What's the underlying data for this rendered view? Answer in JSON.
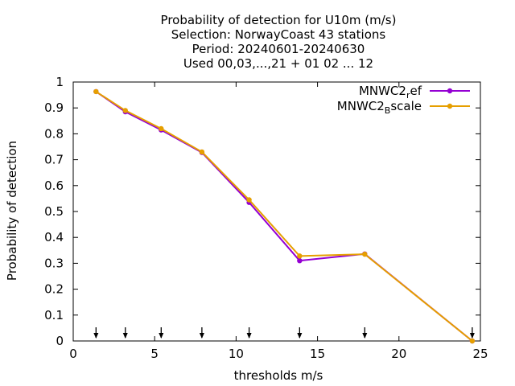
{
  "chart_data": {
    "type": "line",
    "title_lines": [
      "Probability of detection  for U10m (m/s)",
      "Selection: NorwayCoast     43 stations",
      "Period: 20240601-20240630",
      "Used 00,03,...,21 + 01 02 ... 12"
    ],
    "xlabel": "thresholds m/s",
    "ylabel": "Probability of detection",
    "xlim": [
      0,
      25
    ],
    "ylim": [
      0,
      1
    ],
    "xticks": [
      0,
      5,
      10,
      15,
      20,
      25
    ],
    "yticks": [
      0,
      0.1,
      0.2,
      0.3,
      0.4,
      0.5,
      0.6,
      0.7,
      0.8,
      0.9,
      1
    ],
    "ytick_labels": [
      "0",
      "0.1",
      "0.2",
      "0.3",
      "0.4",
      "0.5",
      "0.6",
      "0.7",
      "0.8",
      "0.9",
      "1"
    ],
    "grid": false,
    "legend_position": "top-right",
    "threshold_markers": [
      1.4,
      3.2,
      5.4,
      7.9,
      10.8,
      13.9,
      17.9,
      24.5
    ],
    "series": [
      {
        "name": "MNWC2_ref",
        "legend_main": "MNWC2",
        "legend_sub": "r",
        "legend_rest": "ef",
        "color": "#9400d3",
        "x": [
          1.4,
          3.2,
          5.4,
          7.9,
          10.8,
          13.9,
          17.9,
          24.5
        ],
        "y": [
          0.963,
          0.885,
          0.815,
          0.728,
          0.535,
          0.31,
          0.336,
          0.0
        ]
      },
      {
        "name": "MNWC2_Bscale",
        "legend_main": "MNWC2",
        "legend_sub": "B",
        "legend_rest": "scale",
        "color": "#e69f00",
        "x": [
          1.4,
          3.2,
          5.4,
          7.9,
          10.8,
          13.9,
          17.9,
          24.5
        ],
        "y": [
          0.963,
          0.89,
          0.82,
          0.73,
          0.545,
          0.328,
          0.335,
          0.0
        ]
      }
    ]
  }
}
